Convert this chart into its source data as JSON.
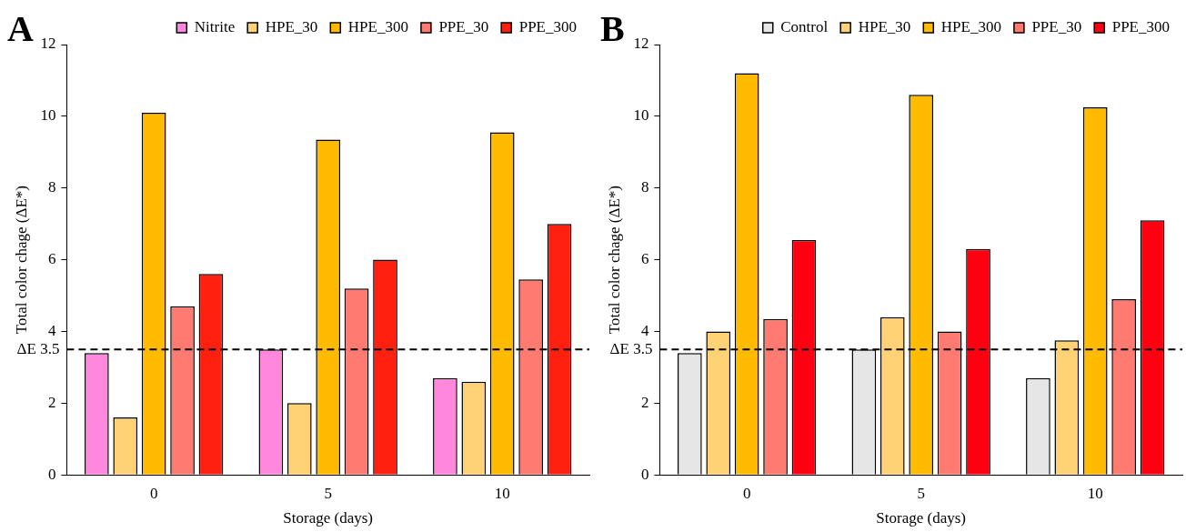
{
  "chart_data": [
    {
      "type": "bar",
      "title": "A",
      "xlabel": "Storage (days)",
      "ylabel": "Total color chage (ΔE*)",
      "categories": [
        "0",
        "5",
        "10"
      ],
      "series": [
        {
          "name": "Nitrite",
          "color": "#ff88dd",
          "values": [
            3.4,
            3.5,
            2.7
          ]
        },
        {
          "name": "HPE_30",
          "color": "#ffd275",
          "values": [
            1.6,
            2.0,
            2.6
          ]
        },
        {
          "name": "HPE_300",
          "color": "#ffbb00",
          "values": [
            10.1,
            9.35,
            9.55
          ]
        },
        {
          "name": "PPE_30",
          "color": "#ff7b72",
          "values": [
            4.7,
            5.2,
            5.45
          ]
        },
        {
          "name": "PPE_300",
          "color": "#ff2010",
          "values": [
            5.6,
            6.0,
            7.0
          ]
        }
      ],
      "ylim": [
        0,
        12
      ],
      "yticks": [
        0,
        2,
        4,
        6,
        8,
        10,
        12
      ],
      "grid": false,
      "legend": "top",
      "ref_lines": [
        {
          "axis": "y",
          "value": 3.5,
          "label": "ΔE 3.5",
          "color": "#000000",
          "line_style": "dashed"
        }
      ]
    },
    {
      "type": "bar",
      "title": "B",
      "xlabel": "Storage (days)",
      "ylabel": "Total color chage (ΔE*)",
      "categories": [
        "0",
        "5",
        "10"
      ],
      "series": [
        {
          "name": "Control",
          "color": "#e6e6e6",
          "values": [
            3.4,
            3.5,
            2.7
          ]
        },
        {
          "name": "HPE_30",
          "color": "#ffd275",
          "values": [
            4.0,
            4.4,
            3.75
          ]
        },
        {
          "name": "HPE_300",
          "color": "#ffbb00",
          "values": [
            11.2,
            10.6,
            10.25
          ]
        },
        {
          "name": "PPE_30",
          "color": "#ff7b72",
          "values": [
            4.35,
            4.0,
            4.9
          ]
        },
        {
          "name": "PPE_300",
          "color": "#ff0010",
          "values": [
            6.55,
            6.3,
            7.1
          ]
        }
      ],
      "ylim": [
        0,
        12
      ],
      "yticks": [
        0,
        2,
        4,
        6,
        8,
        10,
        12
      ],
      "grid": false,
      "legend": "top",
      "ref_lines": [
        {
          "axis": "y",
          "value": 3.5,
          "label": "ΔE 3.5",
          "color": "#000000",
          "line_style": "dashed"
        }
      ]
    }
  ]
}
